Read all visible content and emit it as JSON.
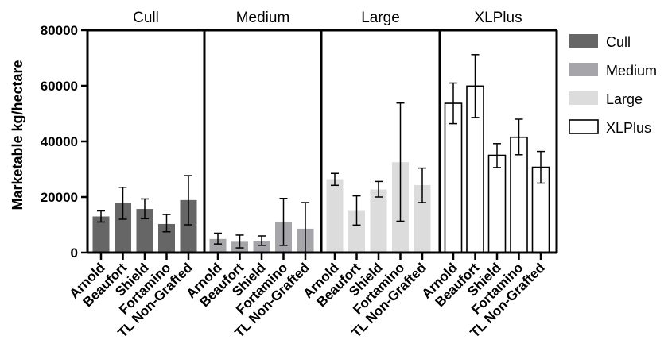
{
  "chart_data": {
    "type": "bar",
    "ylabel": "Marketable kg/hectare",
    "ylim": [
      0,
      80000
    ],
    "yticks": [
      0,
      20000,
      40000,
      60000,
      80000
    ],
    "ytick_labels": [
      "0",
      "20000",
      "40000",
      "60000",
      "80000"
    ],
    "categories": [
      "Arnold",
      "Beaufort",
      "Shield",
      "Fortamino",
      "TL Non-Grafted"
    ],
    "legend_position": "right",
    "grid": false,
    "series": [
      {
        "name": "Cull",
        "color": "#666666",
        "fill": "solid",
        "values": [
          13000,
          17800,
          15700,
          10300,
          18900
        ],
        "error_low": [
          11000,
          12000,
          12200,
          7500,
          10000
        ],
        "error_high": [
          15000,
          23500,
          19300,
          13700,
          27700
        ]
      },
      {
        "name": "Medium",
        "color": "#a6a6aa",
        "fill": "solid",
        "values": [
          4900,
          3900,
          4200,
          10900,
          8600
        ],
        "error_low": [
          3100,
          1700,
          2600,
          2600,
          0
        ],
        "error_high": [
          7000,
          6300,
          6000,
          19500,
          18000
        ]
      },
      {
        "name": "Large",
        "color": "#dcdcdc",
        "fill": "solid",
        "values": [
          26400,
          15000,
          22700,
          32500,
          24300
        ],
        "error_low": [
          24200,
          9900,
          20000,
          11300,
          18000
        ],
        "error_high": [
          28500,
          20400,
          25600,
          53800,
          30400
        ]
      },
      {
        "name": "XLPlus",
        "color": "#ffffff",
        "fill": "outline",
        "values": [
          53700,
          59900,
          35000,
          41500,
          30700
        ],
        "error_low": [
          46400,
          48600,
          30600,
          35200,
          25000
        ],
        "error_high": [
          61000,
          71200,
          39200,
          48000,
          36400
        ]
      }
    ]
  }
}
